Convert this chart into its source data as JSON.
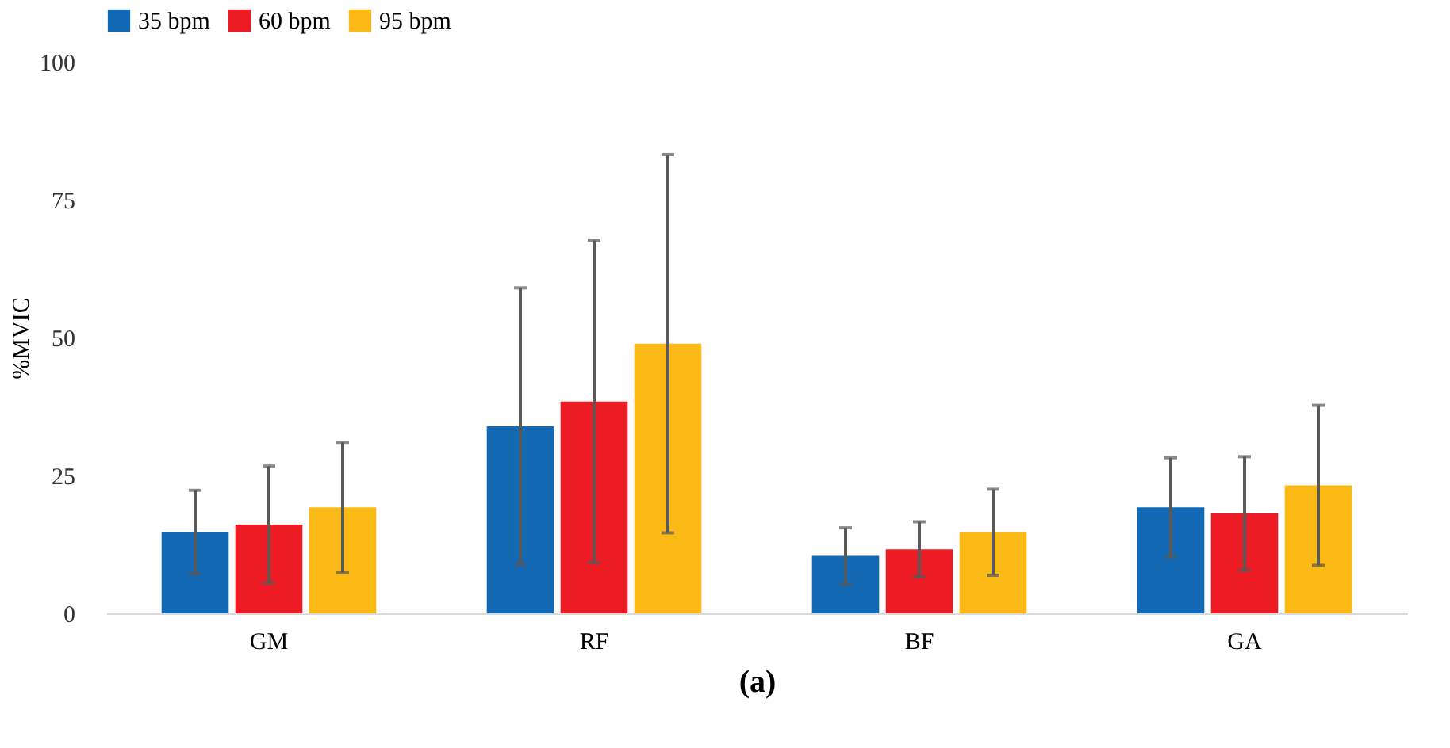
{
  "chart_data": {
    "type": "bar",
    "xlabel": "(a)",
    "ylabel": "%MVIC",
    "categories": [
      "GM",
      "RF",
      "BF",
      "GA"
    ],
    "series": [
      {
        "name": "35 bpm",
        "color": "#1369b4",
        "values": [
          14.7,
          33.9,
          10.4,
          19.2
        ],
        "errors": [
          7.6,
          25.1,
          5.1,
          9.0
        ]
      },
      {
        "name": "60 bpm",
        "color": "#ed1c24",
        "values": [
          16.1,
          38.4,
          11.6,
          18.1
        ],
        "errors": [
          10.6,
          29.2,
          5.0,
          10.3
        ]
      },
      {
        "name": "95 bpm",
        "color": "#fbb915",
        "values": [
          19.2,
          48.9,
          14.7,
          23.2
        ],
        "errors": [
          11.8,
          34.3,
          7.8,
          14.5
        ]
      }
    ],
    "ylim": [
      0,
      100
    ],
    "yticks": [
      0,
      25,
      50,
      75,
      100
    ],
    "grid": false,
    "legend": "top"
  }
}
